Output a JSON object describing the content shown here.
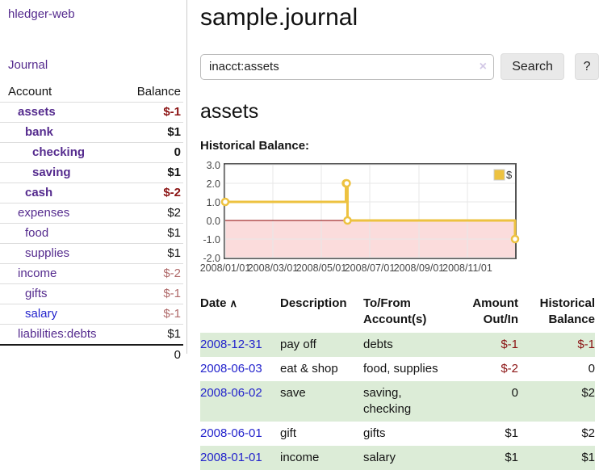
{
  "colors": {
    "link_purple": "#552b8e",
    "link_blue": "#2323cc",
    "neg_strong": "#8b1313",
    "neg_soft": "#b06a6a",
    "row_alt": "#dcecd7"
  },
  "app": {
    "title": "hledger-web"
  },
  "nav": {
    "journal": "Journal"
  },
  "sidebar": {
    "columns": {
      "account": "Account",
      "balance": "Balance"
    },
    "accounts": [
      {
        "name": "assets",
        "indent": 1,
        "balance": "$-1",
        "bold": true,
        "neg": "strong"
      },
      {
        "name": "bank",
        "indent": 2,
        "balance": "$1",
        "bold": true
      },
      {
        "name": "checking",
        "indent": 3,
        "balance": "0",
        "bold": true
      },
      {
        "name": "saving",
        "indent": 3,
        "balance": "$1",
        "bold": true
      },
      {
        "name": "cash",
        "indent": 2,
        "balance": "$-2",
        "bold": true,
        "neg": "strong"
      },
      {
        "name": "expenses",
        "indent": 1,
        "balance": "$2"
      },
      {
        "name": "food",
        "indent": 2,
        "balance": "$1"
      },
      {
        "name": "supplies",
        "indent": 2,
        "balance": "$1"
      },
      {
        "name": "income",
        "indent": 1,
        "balance": "$-2",
        "neg": "soft"
      },
      {
        "name": "gifts",
        "indent": 2,
        "balance": "$-1",
        "neg": "soft"
      },
      {
        "name": "salary",
        "indent": 2,
        "balance": "$-1",
        "neg": "soft",
        "unvisited": true
      },
      {
        "name": "liabilities:debts",
        "indent": 1,
        "balance": "$1"
      }
    ],
    "total": "0"
  },
  "header": {
    "title": "sample.journal"
  },
  "search": {
    "value": "inacct:assets",
    "clear_icon": "×",
    "button_label": "Search",
    "help_label": "?"
  },
  "account_page": {
    "title": "assets",
    "chart_label": "Historical Balance:"
  },
  "chart_data": {
    "type": "line",
    "step": true,
    "title": "Historical Balance",
    "series": [
      {
        "name": "$",
        "points": [
          [
            "2008-01-01",
            1
          ],
          [
            "2008-06-01",
            2
          ],
          [
            "2008-06-02",
            2
          ],
          [
            "2008-06-03",
            0
          ],
          [
            "2008-12-31",
            -1
          ]
        ]
      }
    ],
    "x_range": [
      "2008-01-01",
      "2008-12-31"
    ],
    "x_ticks": [
      {
        "date": "2008-01-01",
        "label": "2008/01/01"
      },
      {
        "date": "2008-03-01",
        "label": "2008/03/01"
      },
      {
        "date": "2008-05-01",
        "label": "2008/05/01"
      },
      {
        "date": "2008-07-01",
        "label": "2008/07/01"
      },
      {
        "date": "2008-09-01",
        "label": "2008/09/01"
      },
      {
        "date": "2008-11-01",
        "label": "2008/11/01"
      }
    ],
    "y_ticks": [
      3.0,
      2.0,
      1.0,
      0.0,
      -1.0,
      -2.0
    ],
    "ylim": [
      -2,
      3
    ],
    "legend": {
      "label": "$",
      "position": "top-right"
    },
    "colors": {
      "line": "#edc240",
      "marker_fill": "#ffffff",
      "negative_region": "#fbdcdc",
      "zero_line": "#8b0000",
      "grid": "#e7e7e7",
      "border": "#545454"
    }
  },
  "register": {
    "columns": [
      "Date",
      "Description",
      "To/From Account(s)",
      "Amount Out/In",
      "Historical Balance"
    ],
    "sort_icon": "∧",
    "rows": [
      {
        "date": "2008-12-31",
        "description": "pay off",
        "accounts": "debts",
        "amount": "$-1",
        "balance": "$-1",
        "amount_neg": true,
        "balance_neg": true
      },
      {
        "date": "2008-06-03",
        "description": "eat & shop",
        "accounts": "food, supplies",
        "amount": "$-2",
        "balance": "0",
        "amount_neg": true
      },
      {
        "date": "2008-06-02",
        "description": "save",
        "accounts": "saving, checking",
        "amount": "0",
        "balance": "$2"
      },
      {
        "date": "2008-06-01",
        "description": "gift",
        "accounts": "gifts",
        "amount": "$1",
        "balance": "$2"
      },
      {
        "date": "2008-01-01",
        "description": "income",
        "accounts": "salary",
        "amount": "$1",
        "balance": "$1"
      }
    ]
  }
}
